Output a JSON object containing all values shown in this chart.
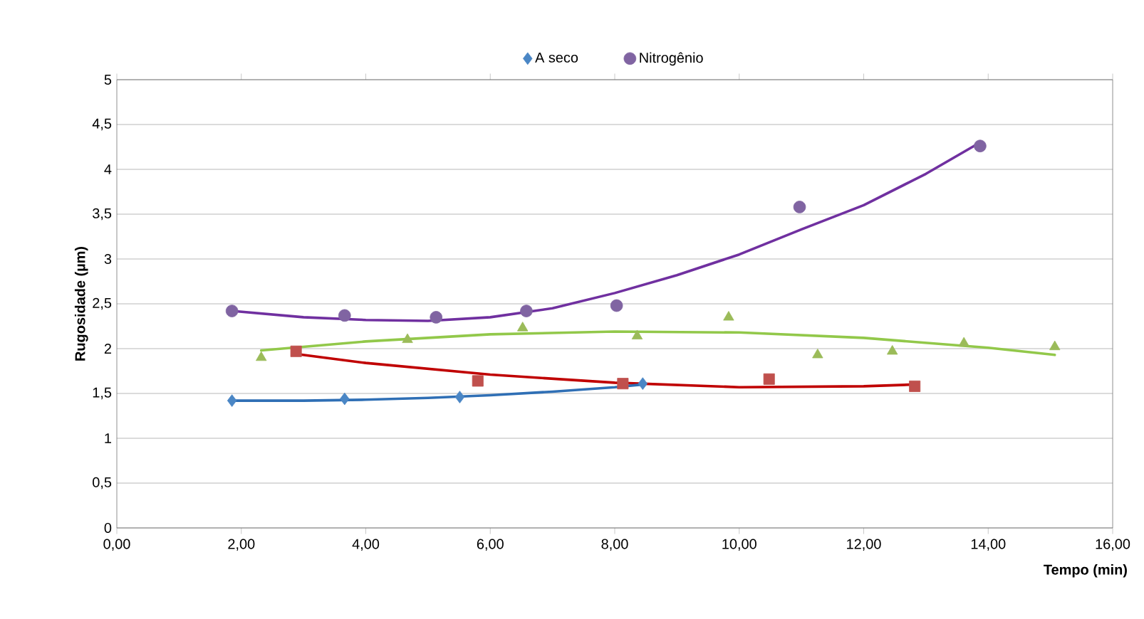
{
  "chart_data": {
    "type": "scatter",
    "xlabel": "Tempo (min)",
    "ylabel": "Rugosidade (µm)",
    "xlim": [
      0,
      16
    ],
    "ylim": [
      0,
      5
    ],
    "xticks": [
      {
        "value": 0,
        "label": "0,00"
      },
      {
        "value": 2,
        "label": "2,00"
      },
      {
        "value": 4,
        "label": "4,00"
      },
      {
        "value": 6,
        "label": "6,00"
      },
      {
        "value": 8,
        "label": "8,00"
      },
      {
        "value": 10,
        "label": "10,00"
      },
      {
        "value": 12,
        "label": "12,00"
      },
      {
        "value": 14,
        "label": "14,00"
      },
      {
        "value": 16,
        "label": "16,00"
      }
    ],
    "yticks": [
      0,
      {
        "value": 0.5,
        "label": "0,5"
      },
      1,
      {
        "value": 1.5,
        "label": "1,5"
      },
      2,
      {
        "value": 2.5,
        "label": "2,5"
      },
      3,
      {
        "value": 3.5,
        "label": "3,5"
      },
      4,
      {
        "value": 4.5,
        "label": "4,5"
      },
      5
    ],
    "grid": "y",
    "legend": "top",
    "series": [
      {
        "marker": "square",
        "color": "#c0504d",
        "x": [
          2.88,
          5.8,
          8.13,
          10.48,
          12.82
        ],
        "values": [
          1.97,
          1.64,
          1.61,
          1.66,
          1.58
        ]
      },
      {
        "name": "A seco",
        "marker": "diamond",
        "color": "#4a86c5",
        "x": [
          1.85,
          3.66,
          5.51,
          8.45
        ],
        "values": [
          1.42,
          1.44,
          1.46,
          1.61
        ]
      },
      {
        "marker": "triangle",
        "color": "#9bbb59",
        "x": [
          2.32,
          4.67,
          6.52,
          8.36,
          9.83,
          11.26,
          12.46,
          13.61,
          15.07
        ],
        "values": [
          1.9,
          2.1,
          2.23,
          2.14,
          2.35,
          1.93,
          1.97,
          2.06,
          2.02
        ]
      },
      {
        "name": "Nitrogênio",
        "marker": "circle",
        "color": "#8064a2",
        "x": [
          1.85,
          3.66,
          5.13,
          6.58,
          8.03,
          10.97,
          13.87
        ],
        "values": [
          2.42,
          2.37,
          2.35,
          2.42,
          2.48,
          3.58,
          4.26
        ]
      },
      {
        "type": "line",
        "marker": "none",
        "color": "#c00000",
        "x": [
          2.88,
          4,
          6,
          8,
          10,
          12,
          12.82
        ],
        "values": [
          1.94,
          1.84,
          1.71,
          1.62,
          1.57,
          1.58,
          1.6
        ]
      },
      {
        "type": "line",
        "marker": "none",
        "color": "#2f6fb5",
        "x": [
          1.85,
          3,
          4,
          5,
          6,
          7,
          8,
          8.45
        ],
        "values": [
          1.42,
          1.42,
          1.43,
          1.45,
          1.48,
          1.52,
          1.57,
          1.6
        ]
      },
      {
        "type": "line",
        "marker": "none",
        "color": "#92c84a",
        "x": [
          2.32,
          4,
          6,
          8,
          10,
          12,
          14,
          15.07
        ],
        "values": [
          1.98,
          2.08,
          2.16,
          2.19,
          2.18,
          2.12,
          2.01,
          1.93
        ]
      },
      {
        "type": "line",
        "marker": "none",
        "color": "#7030a0",
        "x": [
          1.85,
          3,
          4,
          5,
          6,
          7,
          8,
          9,
          10,
          11,
          12,
          13,
          13.87
        ],
        "values": [
          2.42,
          2.35,
          2.32,
          2.31,
          2.35,
          2.45,
          2.62,
          2.82,
          3.05,
          3.33,
          3.6,
          3.95,
          4.3
        ]
      }
    ]
  }
}
